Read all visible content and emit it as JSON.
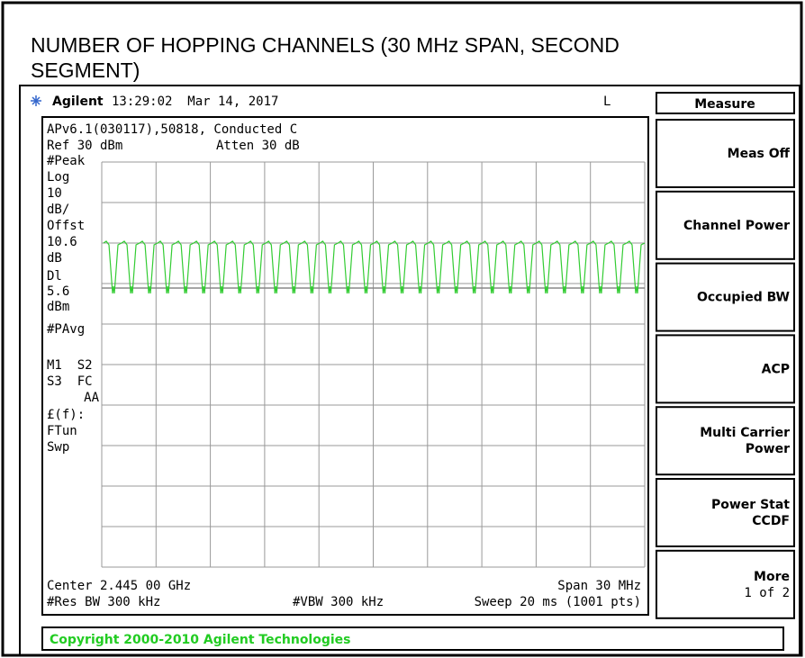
{
  "header": {
    "title_lines": [
      "NUMBER OF HOPPING CHANNELS (30 MHz SPAN, SECOND",
      "SEGMENT)"
    ]
  },
  "status": {
    "brand": "Agilent",
    "datetime": "13:29:02  Mar 14, 2017",
    "mode": "L"
  },
  "screen": {
    "info": "APv6.1(030117),50818, Conducted C",
    "ref": "Ref 30 dBm",
    "atten": "Atten 30 dB",
    "left_labels": [
      "#Peak",
      "Log",
      "10",
      "dB/",
      "Offst",
      "10.6",
      "dB",
      "Dl",
      "5.6",
      "dBm",
      "#PAvg",
      "M1  S2",
      "S3  FC",
      "AA",
      "£(f):",
      "FTun",
      "Swp"
    ],
    "center": "Center 2.445 00 GHz",
    "span": "Span 30 MHz",
    "res_bw": "#Res BW 300 kHz",
    "vbw": "#VBW 300 kHz",
    "sweep": "Sweep 20 ms (1001 pts)"
  },
  "menu": {
    "title": "Measure",
    "softkeys": [
      [
        "Meas Off"
      ],
      [
        "Channel Power"
      ],
      [
        "Occupied BW"
      ],
      [
        "ACP"
      ],
      [
        "Multi Carrier",
        "Power"
      ],
      [
        "Power Stat",
        "CCDF"
      ],
      [
        "More",
        "1 of 2"
      ]
    ]
  },
  "footer": {
    "copyright": "Copyright 2000-2010 Agilent Technologies"
  }
}
